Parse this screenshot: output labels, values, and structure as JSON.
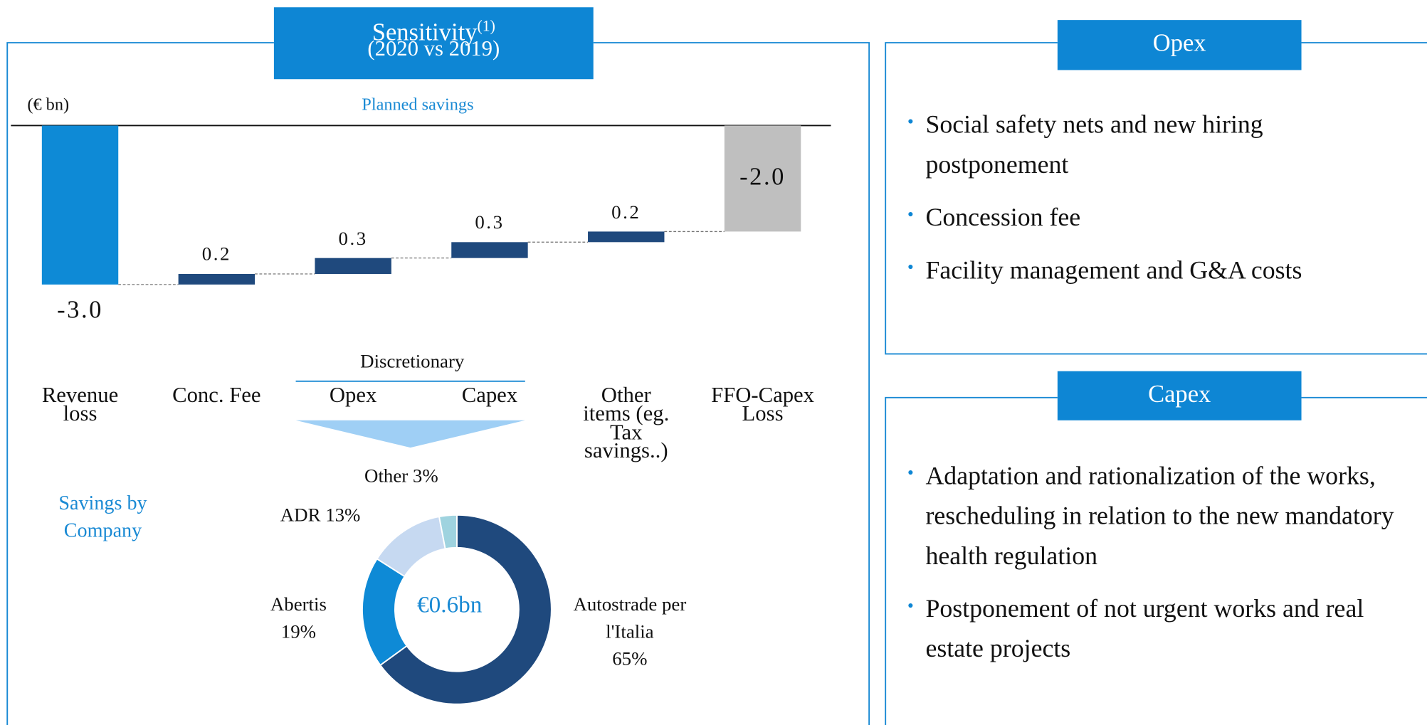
{
  "chart_data": [
    {
      "type": "waterfall",
      "title": "Sensitivity",
      "title_note": "(1)",
      "subtitle": "(2020 vs 2019)",
      "unit": "(€ bn)",
      "annotation": "Planned savings",
      "group_label": "Discretionary",
      "categories": [
        "Revenue loss",
        "Conc. Fee",
        "Opex",
        "Capex",
        "Other items (eg. Tax savings..)",
        "FFO-Capex Loss"
      ],
      "values": [
        -3.0,
        0.2,
        0.3,
        0.3,
        0.2,
        -2.0
      ],
      "value_labels": [
        "-3.0",
        "0.2",
        "0.3",
        "0.3",
        "0.2",
        "-2.0"
      ],
      "colors": [
        "#0e8ad6",
        "#1f497d",
        "#1f497d",
        "#1f497d",
        "#1f497d",
        "#bfbfbf"
      ]
    },
    {
      "type": "pie",
      "title": "Savings by Company",
      "center_label": "€0.6bn",
      "categories": [
        "Autostrade per l'Italia",
        "Abertis",
        "ADR",
        "Other"
      ],
      "values": [
        65,
        19,
        13,
        3
      ],
      "value_labels": [
        "65%",
        "19%",
        "13%",
        "3%"
      ],
      "colors": [
        "#1f497d",
        "#0e8ad6",
        "#c6d9f1",
        "#9fd3df"
      ]
    }
  ],
  "panels": [
    {
      "title": "Opex",
      "bullets": [
        "Social safety nets and new hiring postponement",
        "Concession fee",
        "Facility management and G&A costs"
      ]
    },
    {
      "title": "Capex",
      "bullets": [
        "Adaptation and rationalization of the works, rescheduling in relation to the new mandatory health regulation",
        "Postponement of not urgent works and real estate projects"
      ]
    }
  ]
}
